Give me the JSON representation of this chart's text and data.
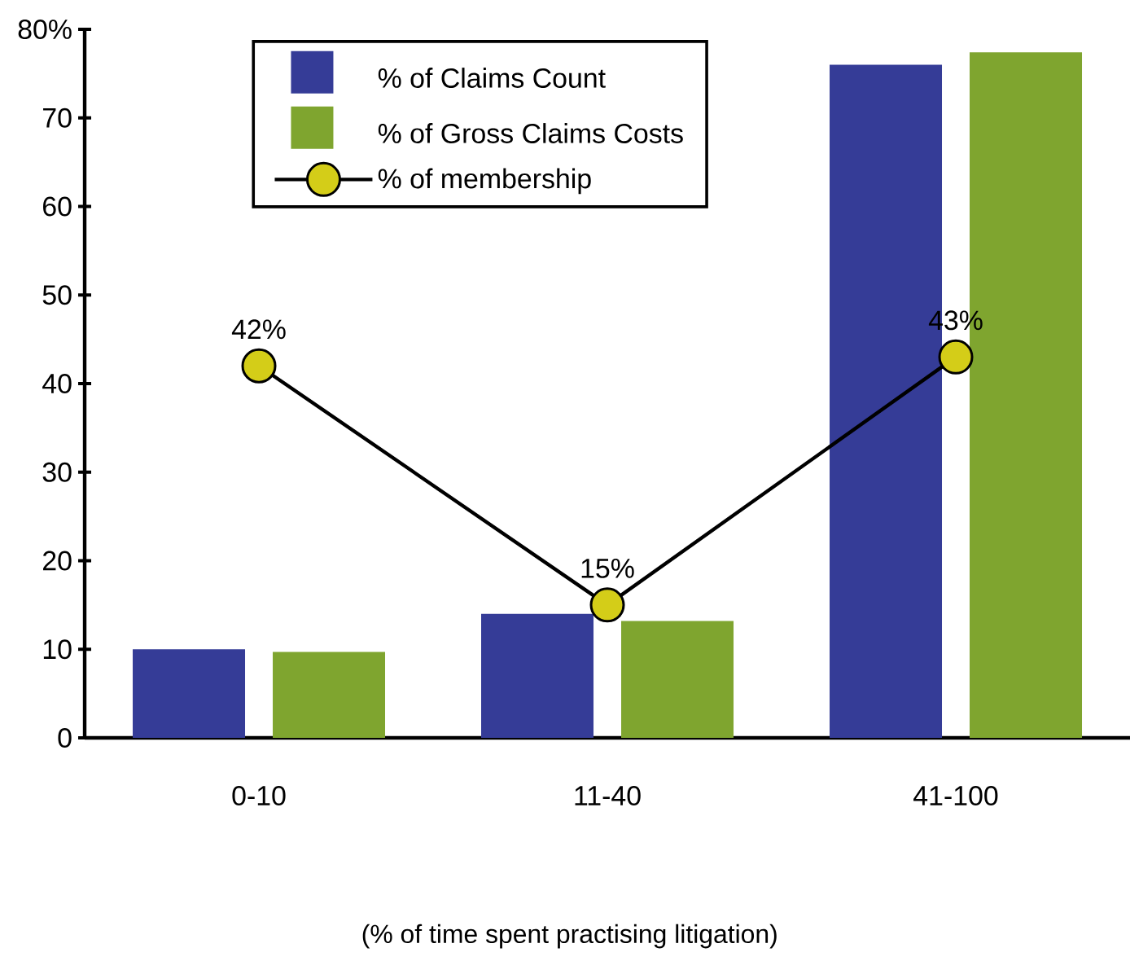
{
  "chart_data": {
    "type": "bar",
    "xlabel": "(%  of time spent practising litigation)",
    "categories": [
      "0-10",
      "11-40",
      "41-100"
    ],
    "series": [
      {
        "name": "% of Claims Count",
        "color": "#353c97",
        "values": [
          10,
          14,
          76
        ]
      },
      {
        "name": "% of Gross Claims Costs",
        "color": "#7fa52f",
        "values": [
          9.7,
          13.2,
          77.4
        ]
      },
      {
        "name": "% of membership",
        "type": "line",
        "color": "#d4cd18",
        "marker": "circle",
        "values": [
          42,
          15,
          43
        ],
        "value_labels": [
          "42%",
          "15%",
          "43%"
        ]
      }
    ],
    "ylim": [
      0,
      80
    ],
    "yticks": [
      0,
      10,
      20,
      30,
      40,
      50,
      60,
      70,
      {
        "value": 80,
        "label": "80%"
      }
    ],
    "grid": false,
    "legend": "top"
  }
}
